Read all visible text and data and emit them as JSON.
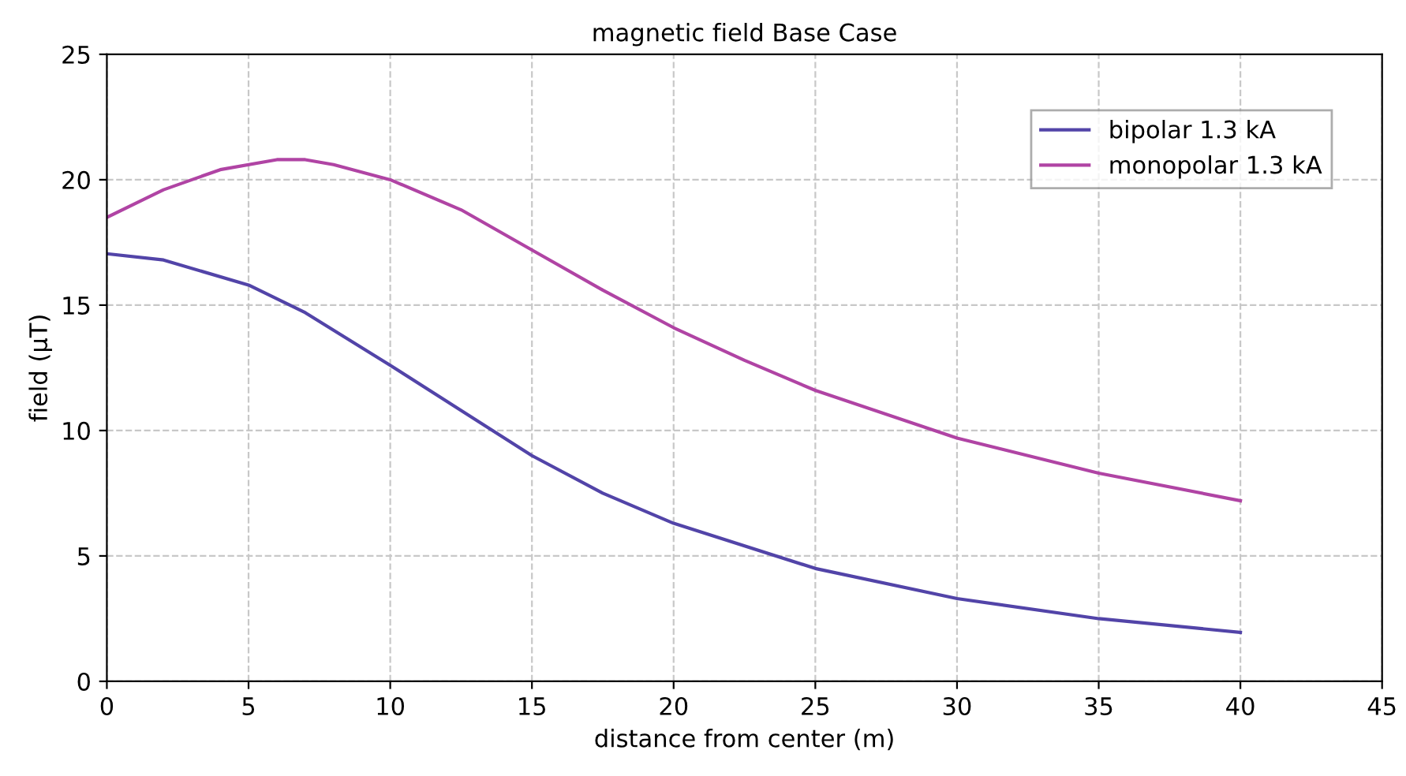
{
  "chart_data": {
    "type": "line",
    "title": "magnetic field Base Case",
    "xlabel": "distance from center (m)",
    "ylabel": "field (µT)",
    "xlim": [
      0,
      45
    ],
    "xticks": [
      0,
      5,
      10,
      15,
      20,
      25,
      30,
      35,
      40,
      45
    ],
    "ylim": [
      0,
      25
    ],
    "yticks": [
      0,
      5,
      10,
      15,
      20,
      25
    ],
    "grid": true,
    "legend": "top right",
    "marker": "none",
    "line_style": "solid",
    "series": [
      {
        "name": "bipolar 1.3 kA",
        "color": "#5244a8",
        "x": [
          0,
          2,
          5,
          7,
          10,
          12.5,
          15,
          17.5,
          20,
          25,
          30,
          35,
          40
        ],
        "values": [
          17.05,
          16.8,
          15.8,
          14.7,
          12.6,
          10.8,
          9.0,
          7.5,
          6.3,
          4.5,
          3.3,
          2.5,
          1.95
        ]
      },
      {
        "name": "monopolar 1.3 kA",
        "color": "#b044a4",
        "x": [
          0,
          2,
          4,
          6,
          7,
          8,
          10,
          12.5,
          15,
          17.5,
          20,
          22.5,
          25,
          30,
          35,
          40
        ],
        "values": [
          18.5,
          19.6,
          20.4,
          20.8,
          20.8,
          20.6,
          20.0,
          18.8,
          17.2,
          15.6,
          14.1,
          12.8,
          11.6,
          9.7,
          8.3,
          7.2
        ]
      }
    ]
  }
}
